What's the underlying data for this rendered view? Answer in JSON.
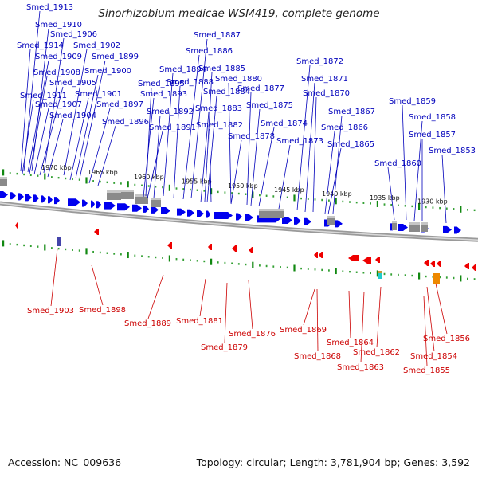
{
  "title": "Sinorhizobium medicae WSM419, complete genome",
  "footer": {
    "accession": "Accession: NC_009636",
    "summary": "Topology: circular; Length: 3,781,904 bp; Genes: 3,592"
  },
  "colors": {
    "forward_gene": "#0000ee",
    "reverse_gene": "#ee0000",
    "forward_label": "#0000bb",
    "reverse_label": "#cc0000",
    "scale_dot": "#33a033",
    "scale_tick": "#118811",
    "backbone": "#888888",
    "feature_gray": "#8a8a8a",
    "rna_cyan": "#22cccc",
    "rna_orange": "#ee8800"
  },
  "scale": {
    "unit": "kbp",
    "labels": [
      "1970 kbp",
      "1965 kbp",
      "1960 kbp",
      "1955 kbp",
      "1950 kbp",
      "1945 kbp",
      "1940 kbp",
      "1935 kbp",
      "1930 kbp"
    ]
  },
  "forward_labels": [
    "Smed_1913",
    "Smed_1910",
    "Smed_1906",
    "Smed_1914",
    "Smed_1902",
    "Smed_1909",
    "Smed_1899",
    "Smed_1908",
    "Smed_1900",
    "Smed_1905",
    "Smed_1901",
    "Smed_1911",
    "Smed_1907",
    "Smed_1897",
    "Smed_1904",
    "Smed_1896",
    "Smed_1887",
    "Smed_1886",
    "Smed_1894",
    "Smed_1895",
    "Smed_1885",
    "Smed_1888",
    "Smed_1893",
    "Smed_1884",
    "Smed_1892",
    "Smed_1883",
    "Smed_1891",
    "Smed_1882",
    "Smed_1880",
    "Smed_1877",
    "Smed_1875",
    "Smed_1878",
    "Smed_1874",
    "Smed_1872",
    "Smed_1871",
    "Smed_1873",
    "Smed_1870",
    "Smed_1867",
    "Smed_1866",
    "Smed_1865",
    "Smed_1859",
    "Smed_1858",
    "Smed_1857",
    "Smed_1860",
    "Smed_1853"
  ],
  "reverse_labels": [
    "Smed_1903",
    "Smed_1898",
    "Smed_1889",
    "Smed_1881",
    "Smed_1876",
    "Smed_1879",
    "Smed_1869",
    "Smed_1868",
    "Smed_1864",
    "Smed_1863",
    "Smed_1862",
    "Smed_1856",
    "Smed_1854",
    "Smed_1855"
  ]
}
